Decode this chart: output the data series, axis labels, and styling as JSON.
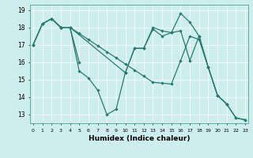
{
  "xlabel": "Humidex (Indice chaleur)",
  "bg_color": "#ceeeed",
  "line_color": "#2a7a6f",
  "grid_color": "#ffffff",
  "yticks": [
    13,
    14,
    15,
    16,
    17,
    18,
    19
  ],
  "xticks": [
    0,
    1,
    2,
    3,
    4,
    5,
    6,
    7,
    8,
    9,
    10,
    11,
    12,
    13,
    14,
    15,
    16,
    17,
    18,
    19,
    20,
    21,
    22,
    23
  ],
  "xlim": [
    -0.3,
    23.3
  ],
  "ylim": [
    12.5,
    19.3
  ],
  "series": [
    {
      "x": [
        0,
        1,
        2,
        3,
        4,
        5,
        6,
        7,
        8,
        9,
        10,
        11,
        12,
        13,
        14,
        15,
        16,
        17,
        18,
        19,
        20,
        21
      ],
      "y": [
        17.0,
        18.2,
        18.5,
        18.0,
        18.0,
        15.5,
        15.1,
        14.4,
        13.0,
        13.3,
        15.4,
        16.8,
        16.8,
        18.0,
        17.8,
        17.7,
        17.8,
        16.1,
        17.5,
        15.7,
        14.1,
        13.6
      ]
    },
    {
      "x": [
        0,
        1,
        2,
        3,
        4,
        5,
        6,
        7,
        8,
        9,
        10,
        11,
        12,
        13,
        14,
        15,
        16,
        17,
        18,
        19,
        20,
        21,
        22,
        23
      ],
      "y": [
        17.0,
        18.2,
        18.5,
        18.0,
        18.0,
        17.65,
        17.3,
        16.95,
        16.6,
        16.25,
        15.9,
        15.55,
        15.2,
        14.85,
        14.8,
        14.75,
        16.1,
        17.5,
        17.3,
        15.7,
        14.1,
        13.6,
        12.8,
        12.7
      ]
    },
    {
      "x": [
        2,
        3,
        4,
        5
      ],
      "y": [
        18.5,
        18.0,
        18.0,
        16.0
      ]
    },
    {
      "x": [
        0,
        1,
        2,
        3,
        4,
        10,
        11,
        12,
        13,
        14,
        15,
        16,
        17,
        18,
        19,
        20,
        21,
        22,
        23
      ],
      "y": [
        17.0,
        18.2,
        18.5,
        18.0,
        18.0,
        15.4,
        16.8,
        16.8,
        17.9,
        17.5,
        17.7,
        18.8,
        18.3,
        17.5,
        15.7,
        14.1,
        13.6,
        12.8,
        12.7
      ]
    }
  ]
}
